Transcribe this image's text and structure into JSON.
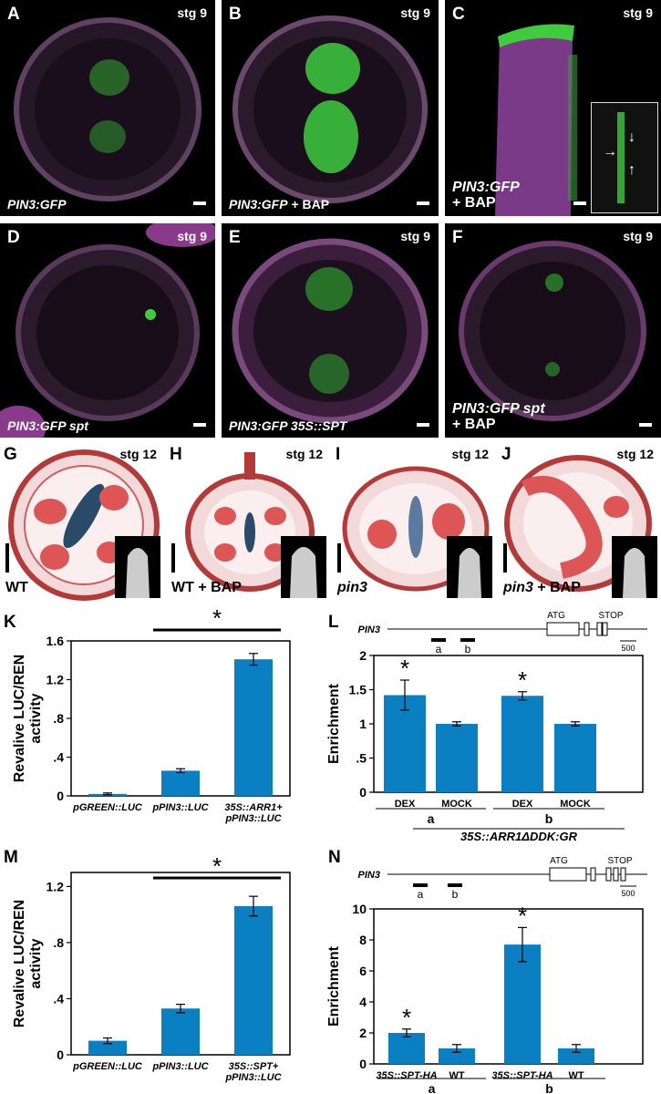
{
  "panels": {
    "A": {
      "letter": "A",
      "stage": "stg 9",
      "genotype": "PIN3:GFP"
    },
    "B": {
      "letter": "B",
      "stage": "stg 9",
      "genotype": "PIN3:GFP",
      "treatment": " + BAP"
    },
    "C": {
      "letter": "C",
      "stage": "stg 9",
      "genotype": "PIN3:GFP",
      "treatment": "+ BAP"
    },
    "D": {
      "letter": "D",
      "stage": "stg 9",
      "genotype": "PIN3:GFP spt"
    },
    "E": {
      "letter": "E",
      "stage": "stg 9",
      "genotype": "PIN3:GFP 35S::SPT"
    },
    "F": {
      "letter": "F",
      "stage": "stg 9",
      "genotype": "PIN3:GFP spt",
      "treatment": "+ BAP"
    },
    "G": {
      "letter": "G",
      "stage": "stg 12",
      "genotype": "WT"
    },
    "H": {
      "letter": "H",
      "stage": "stg 12",
      "genotype": "WT + BAP"
    },
    "I": {
      "letter": "I",
      "stage": "stg 12",
      "genotype": "pin3"
    },
    "J": {
      "letter": "J",
      "stage": "stg 12",
      "genotype": "pin3",
      "treatment": " + BAP"
    },
    "K": {
      "letter": "K"
    },
    "L": {
      "letter": "L"
    },
    "M": {
      "letter": "M"
    },
    "N": {
      "letter": "N"
    }
  },
  "colors": {
    "bar": "#0a7fc2",
    "gfp": "#39d93a",
    "magenta": "#b05cb0",
    "stain": "#c84a4a",
    "blue_stain": "#2a4a6a"
  },
  "chart_data": [
    {
      "id": "K",
      "type": "bar",
      "ylabel": "Revalive LUC/REN activity",
      "categories": [
        "pGREEN::LUC",
        "pPIN3::LUC",
        "35S::ARR1+ pPIN3::LUC"
      ],
      "values": [
        0.02,
        0.26,
        1.41
      ],
      "errors": [
        0.01,
        0.02,
        0.06
      ],
      "ylim": [
        0,
        1.6
      ],
      "yticks": [
        {
          "v": 0,
          "label": "0"
        },
        {
          "v": 0.4,
          "label": ".4"
        },
        {
          "v": 0.8,
          "label": ".8"
        },
        {
          "v": 1.2,
          "label": "1.2"
        },
        {
          "v": 1.6,
          "label": "1.6"
        }
      ],
      "significance": {
        "from": 1,
        "to": 2,
        "label": "*"
      }
    },
    {
      "id": "L",
      "type": "bar",
      "ylabel": "Enrichment",
      "gene": "PIN3",
      "gene_labels": {
        "atg": "ATG",
        "stop": "STOP",
        "scale": "500",
        "a": "a",
        "b": "b"
      },
      "categories": [
        "DEX",
        "MOCK",
        "DEX",
        "MOCK"
      ],
      "groups": [
        "a",
        "a",
        "b",
        "b"
      ],
      "values": [
        1.42,
        1.0,
        1.41,
        1.0
      ],
      "errors": [
        0.22,
        0.03,
        0.06,
        0.03
      ],
      "stars": [
        true,
        false,
        true,
        false
      ],
      "ylim": [
        0,
        2
      ],
      "yticks": [
        {
          "v": 0,
          "label": "0"
        },
        {
          "v": 0.5,
          "label": ".5"
        },
        {
          "v": 1,
          "label": "1"
        },
        {
          "v": 1.5,
          "label": "1.5"
        },
        {
          "v": 2,
          "label": "2"
        }
      ],
      "construct": "35S::ARR1ΔDDK:GR"
    },
    {
      "id": "M",
      "type": "bar",
      "ylabel": "Revalive LUC/REN activity",
      "categories": [
        "pGREEN::LUC",
        "pPIN3::LUC",
        "35S::SPT+ pPIN3::LUC"
      ],
      "values": [
        0.1,
        0.33,
        1.06
      ],
      "errors": [
        0.02,
        0.03,
        0.07
      ],
      "ylim": [
        0,
        1.3
      ],
      "yticks": [
        {
          "v": 0,
          "label": "0"
        },
        {
          "v": 0.4,
          "label": ".4"
        },
        {
          "v": 0.8,
          "label": ".8"
        },
        {
          "v": 1.2,
          "label": "1.2"
        }
      ],
      "significance": {
        "from": 1,
        "to": 2,
        "label": "*"
      }
    },
    {
      "id": "N",
      "type": "bar",
      "ylabel": "Enrichment",
      "gene": "PIN3",
      "gene_labels": {
        "atg": "ATG",
        "stop": "STOP",
        "scale": "500",
        "a": "a",
        "b": "b"
      },
      "categories": [
        "35S::SPT-HA",
        "WT",
        "35S::SPT-HA",
        "WT"
      ],
      "groups": [
        "a",
        "a",
        "b",
        "b"
      ],
      "values": [
        2.0,
        1.0,
        7.7,
        1.0
      ],
      "errors": [
        0.25,
        0.25,
        1.1,
        0.25
      ],
      "stars": [
        true,
        false,
        true,
        false
      ],
      "ylim": [
        0,
        10
      ],
      "yticks": [
        {
          "v": 0,
          "label": "0"
        },
        {
          "v": 2,
          "label": "2"
        },
        {
          "v": 4,
          "label": "4"
        },
        {
          "v": 6,
          "label": "6"
        },
        {
          "v": 8,
          "label": "8"
        },
        {
          "v": 10,
          "label": "10"
        }
      ]
    }
  ]
}
